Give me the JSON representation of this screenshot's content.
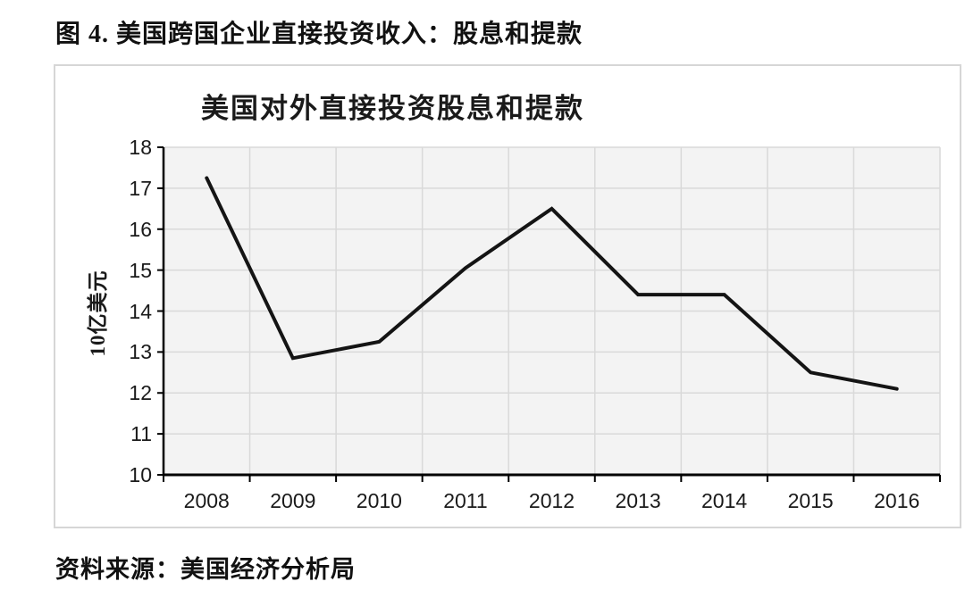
{
  "page": {
    "figure_title": "图 4. 美国跨国企业直接投资收入：股息和提款",
    "source_note": "资料来源：美国经济分析局"
  },
  "chart_data": {
    "type": "line",
    "title": "美国对外直接投资股息和提款",
    "xlabel": "",
    "ylabel": "10亿美元",
    "categories": [
      "2008",
      "2009",
      "2010",
      "2011",
      "2012",
      "2013",
      "2014",
      "2015",
      "2016"
    ],
    "series": [
      {
        "name": "美国对外直接投资股息和提款",
        "values": [
          17.25,
          12.85,
          13.25,
          15.05,
          16.5,
          14.4,
          14.4,
          12.5,
          12.1
        ]
      }
    ],
    "ylim": [
      10,
      18
    ],
    "ytick_step": 1,
    "grid": true,
    "legend": false,
    "colors": {
      "line": "#141414",
      "plot_background": "#f3f3f3",
      "gridline": "#d9d9d9",
      "axis": "#000000",
      "tick_text": "#1a1a1a"
    }
  }
}
